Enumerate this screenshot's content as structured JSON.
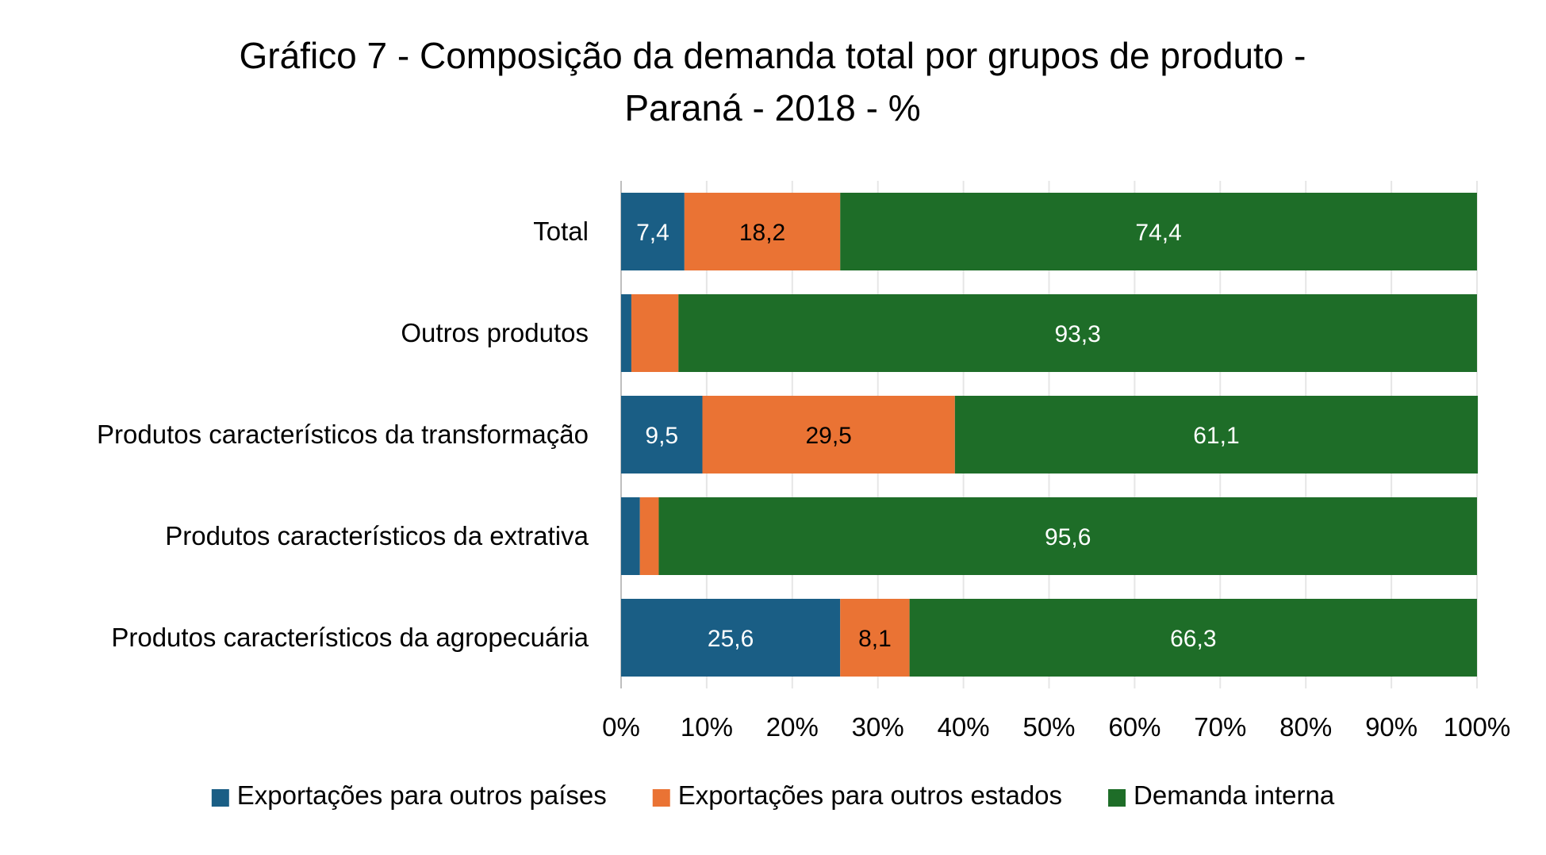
{
  "chart_data": {
    "type": "bar",
    "orientation": "horizontal",
    "stacked": "percent",
    "title_line1": "Gráfico 7 - Composição da demanda total por grupos de produto -",
    "title_line2": "Paraná - 2018 - %",
    "categories": [
      "Total",
      "Outros produtos",
      "Produtos característicos da transformação",
      "Produtos característicos da extrativa",
      "Produtos característicos da agropecuária"
    ],
    "series": [
      {
        "name": "Exportações para outros países",
        "color": "#1a5e85",
        "label_color": "#ffffff",
        "values": [
          7.4,
          1.2,
          9.5,
          2.2,
          25.6
        ],
        "labels": [
          "7,4",
          "",
          "9,5",
          "",
          "25,6"
        ]
      },
      {
        "name": "Exportações para outros estados",
        "color": "#ea7334",
        "label_color": "#000000",
        "values": [
          18.2,
          5.5,
          29.5,
          2.2,
          8.1
        ],
        "labels": [
          "18,2",
          "",
          "29,5",
          "",
          "8,1"
        ]
      },
      {
        "name": "Demanda interna",
        "color": "#1e6d28",
        "label_color": "#ffffff",
        "values": [
          74.4,
          93.3,
          61.1,
          95.6,
          66.3
        ],
        "labels": [
          "74,4",
          "93,3",
          "61,1",
          "95,6",
          "66,3"
        ]
      }
    ],
    "xlim": [
      0,
      100
    ],
    "x_ticks": [
      "0%",
      "10%",
      "20%",
      "30%",
      "40%",
      "50%",
      "60%",
      "70%",
      "80%",
      "90%",
      "100%"
    ],
    "grid": true,
    "legend_position": "bottom"
  }
}
